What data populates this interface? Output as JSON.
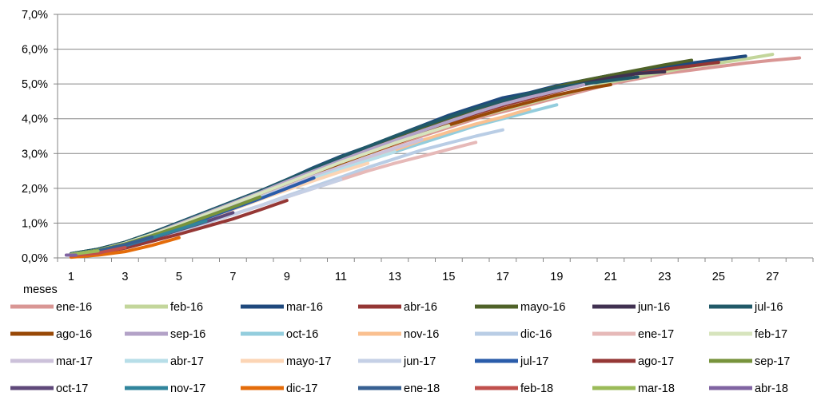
{
  "chart_data": {
    "type": "line",
    "xlabel": "meses",
    "ylabel": "",
    "xlim": [
      1,
      28
    ],
    "ylim": [
      0,
      7
    ],
    "x_ticks": [
      1,
      3,
      5,
      7,
      9,
      11,
      13,
      15,
      17,
      19,
      21,
      23,
      25,
      27
    ],
    "y_ticks": [
      "0,0%",
      "1,0%",
      "2,0%",
      "3,0%",
      "4,0%",
      "5,0%",
      "6,0%",
      "7,0%"
    ],
    "y_tick_values": [
      0,
      1,
      2,
      3,
      4,
      5,
      6,
      7
    ],
    "grid": "horizontal",
    "legend_position": "bottom",
    "series": [
      {
        "name": "ene-16",
        "color": "#d99694",
        "x": [
          1,
          2,
          3,
          4,
          5,
          6,
          7,
          8,
          9,
          10,
          11,
          12,
          13,
          14,
          15,
          16,
          17,
          18,
          19,
          20,
          21,
          22,
          23,
          24,
          25,
          26,
          27,
          28
        ],
        "values": [
          0.1,
          0.2,
          0.4,
          0.65,
          0.95,
          1.25,
          1.55,
          1.85,
          2.15,
          2.45,
          2.75,
          3.0,
          3.25,
          3.5,
          3.75,
          4.0,
          4.2,
          4.4,
          4.6,
          4.8,
          5.0,
          5.15,
          5.3,
          5.4,
          5.5,
          5.6,
          5.68,
          5.75
        ]
      },
      {
        "name": "feb-16",
        "color": "#c3d69b",
        "x": [
          1,
          2,
          3,
          4,
          5,
          6,
          7,
          8,
          9,
          10,
          11,
          12,
          13,
          14,
          15,
          16,
          17,
          18,
          19,
          20,
          21,
          22,
          23,
          24,
          25,
          26,
          27
        ],
        "values": [
          0.1,
          0.22,
          0.42,
          0.68,
          0.98,
          1.28,
          1.58,
          1.88,
          2.2,
          2.5,
          2.8,
          3.05,
          3.3,
          3.55,
          3.8,
          4.05,
          4.25,
          4.45,
          4.65,
          4.85,
          5.05,
          5.2,
          5.35,
          5.5,
          5.6,
          5.72,
          5.85
        ]
      },
      {
        "name": "mar-16",
        "color": "#1f497d",
        "x": [
          1,
          2,
          3,
          4,
          5,
          6,
          7,
          8,
          9,
          10,
          11,
          12,
          13,
          14,
          15,
          16,
          17,
          18,
          19,
          20,
          21,
          22,
          23,
          24,
          25,
          26
        ],
        "values": [
          0.12,
          0.25,
          0.45,
          0.72,
          1.02,
          1.32,
          1.62,
          1.92,
          2.25,
          2.6,
          2.92,
          3.2,
          3.5,
          3.8,
          4.1,
          4.35,
          4.6,
          4.75,
          4.95,
          5.1,
          5.25,
          5.38,
          5.5,
          5.6,
          5.7,
          5.8
        ]
      },
      {
        "name": "abr-16",
        "color": "#943634",
        "x": [
          1,
          2,
          3,
          4,
          5,
          6,
          7,
          8,
          9,
          10,
          11,
          12,
          13,
          14,
          15,
          16,
          17,
          18,
          19,
          20,
          21,
          22,
          23,
          24,
          25
        ],
        "values": [
          0.1,
          0.2,
          0.4,
          0.65,
          0.95,
          1.25,
          1.55,
          1.85,
          2.15,
          2.45,
          2.78,
          3.05,
          3.35,
          3.62,
          3.9,
          4.15,
          4.38,
          4.58,
          4.78,
          4.98,
          5.15,
          5.3,
          5.42,
          5.52,
          5.62
        ]
      },
      {
        "name": "mayo-16",
        "color": "#4f6228",
        "x": [
          1,
          2,
          3,
          4,
          5,
          6,
          7,
          8,
          9,
          10,
          11,
          12,
          13,
          14,
          15,
          16,
          17,
          18,
          19,
          20,
          21,
          22,
          23,
          24
        ],
        "values": [
          0.12,
          0.25,
          0.45,
          0.72,
          1.0,
          1.3,
          1.6,
          1.9,
          2.22,
          2.55,
          2.85,
          3.15,
          3.45,
          3.75,
          4.0,
          4.28,
          4.5,
          4.72,
          4.92,
          5.1,
          5.25,
          5.4,
          5.55,
          5.68
        ]
      },
      {
        "name": "jun-16",
        "color": "#403151",
        "x": [
          1,
          2,
          3,
          4,
          5,
          6,
          7,
          8,
          9,
          10,
          11,
          12,
          13,
          14,
          15,
          16,
          17,
          18,
          19,
          20,
          21,
          22,
          23
        ],
        "values": [
          0.1,
          0.22,
          0.42,
          0.68,
          0.98,
          1.28,
          1.58,
          1.88,
          2.2,
          2.5,
          2.8,
          3.1,
          3.38,
          3.65,
          3.92,
          4.18,
          4.42,
          4.65,
          4.85,
          5.02,
          5.18,
          5.3,
          5.35
        ]
      },
      {
        "name": "jul-16",
        "color": "#215968",
        "x": [
          1,
          2,
          3,
          4,
          5,
          6,
          7,
          8,
          9,
          10,
          11,
          12,
          13,
          14,
          15,
          16,
          17,
          18,
          19,
          20,
          21,
          22
        ],
        "values": [
          0.12,
          0.25,
          0.45,
          0.72,
          1.02,
          1.32,
          1.62,
          1.92,
          2.25,
          2.58,
          2.9,
          3.2,
          3.5,
          3.78,
          4.05,
          4.3,
          4.52,
          4.72,
          4.9,
          5.0,
          5.1,
          5.2
        ]
      },
      {
        "name": "ago-16",
        "color": "#984807",
        "x": [
          1,
          2,
          3,
          4,
          5,
          6,
          7,
          8,
          9,
          10,
          11,
          12,
          13,
          14,
          15,
          16,
          17,
          18,
          19,
          20,
          21
        ],
        "values": [
          0.08,
          0.18,
          0.38,
          0.62,
          0.92,
          1.22,
          1.52,
          1.82,
          2.12,
          2.42,
          2.72,
          3.0,
          3.28,
          3.55,
          3.82,
          4.05,
          4.28,
          4.48,
          4.68,
          4.85,
          4.98
        ]
      },
      {
        "name": "sep-16",
        "color": "#b3a2c7",
        "x": [
          1,
          2,
          3,
          4,
          5,
          6,
          7,
          8,
          9,
          10,
          11,
          12,
          13,
          14,
          15,
          16,
          17,
          18,
          19,
          20
        ],
        "values": [
          0.1,
          0.22,
          0.42,
          0.68,
          0.98,
          1.28,
          1.58,
          1.88,
          2.2,
          2.5,
          2.8,
          3.1,
          3.38,
          3.65,
          3.92,
          4.18,
          4.42,
          4.62,
          4.8,
          4.98
        ]
      },
      {
        "name": "oct-16",
        "color": "#93cddd",
        "x": [
          1,
          2,
          3,
          4,
          5,
          6,
          7,
          8,
          9,
          10,
          11,
          12,
          13,
          14,
          15,
          16,
          17,
          18,
          19
        ],
        "values": [
          0.08,
          0.18,
          0.35,
          0.58,
          0.85,
          1.12,
          1.4,
          1.68,
          1.98,
          2.25,
          2.55,
          2.8,
          3.05,
          3.3,
          3.55,
          3.8,
          4.0,
          4.2,
          4.4
        ]
      },
      {
        "name": "nov-16",
        "color": "#fac090",
        "x": [
          1,
          2,
          3,
          4,
          5,
          6,
          7,
          8,
          9,
          10,
          11,
          12,
          13,
          14,
          15,
          16,
          17,
          18
        ],
        "values": [
          0.08,
          0.18,
          0.35,
          0.58,
          0.85,
          1.12,
          1.4,
          1.68,
          1.98,
          2.28,
          2.58,
          2.85,
          3.1,
          3.38,
          3.62,
          3.85,
          4.05,
          4.28
        ]
      },
      {
        "name": "dic-16",
        "color": "#b9cde5",
        "x": [
          1,
          2,
          3,
          4,
          5,
          6,
          7,
          8,
          9,
          10,
          11,
          12,
          13,
          14,
          15,
          16,
          17
        ],
        "values": [
          0.06,
          0.14,
          0.3,
          0.5,
          0.75,
          1.0,
          1.25,
          1.5,
          1.78,
          2.05,
          2.32,
          2.6,
          2.85,
          3.1,
          3.3,
          3.5,
          3.68
        ]
      },
      {
        "name": "ene-17",
        "color": "#e6b9b8",
        "x": [
          1,
          2,
          3,
          4,
          5,
          6,
          7,
          8,
          9,
          10,
          11,
          12,
          13,
          14,
          15,
          16
        ],
        "values": [
          0.06,
          0.14,
          0.3,
          0.5,
          0.75,
          1.0,
          1.25,
          1.5,
          1.75,
          2.0,
          2.25,
          2.5,
          2.72,
          2.92,
          3.12,
          3.32
        ]
      },
      {
        "name": "feb-17",
        "color": "#d7e4bd",
        "x": [
          1,
          2,
          3,
          4,
          5,
          6,
          7,
          8,
          9,
          10,
          11,
          12,
          13,
          14,
          15
        ],
        "values": [
          0.1,
          0.22,
          0.42,
          0.68,
          0.95,
          1.25,
          1.55,
          1.85,
          2.15,
          2.45,
          2.75,
          3.02,
          3.3,
          3.55,
          3.8
        ]
      },
      {
        "name": "mar-17",
        "color": "#ccc1da",
        "x": [
          1,
          2,
          3,
          4,
          5,
          6,
          7,
          8,
          9,
          10,
          11,
          12,
          13,
          14
        ],
        "values": [
          0.08,
          0.18,
          0.38,
          0.62,
          0.9,
          1.18,
          1.48,
          1.75,
          2.05,
          2.35,
          2.62,
          2.9,
          3.15,
          3.4
        ]
      },
      {
        "name": "abr-17",
        "color": "#b7dee8",
        "x": [
          1,
          2,
          3,
          4,
          5,
          6,
          7,
          8,
          9,
          10,
          11,
          12,
          13
        ],
        "values": [
          0.08,
          0.18,
          0.36,
          0.6,
          0.88,
          1.15,
          1.42,
          1.72,
          2.0,
          2.28,
          2.55,
          2.8,
          3.05
        ]
      },
      {
        "name": "mayo-17",
        "color": "#fcd5b5",
        "x": [
          1,
          2,
          3,
          4,
          5,
          6,
          7,
          8,
          9,
          10,
          11,
          12
        ],
        "values": [
          0.08,
          0.18,
          0.36,
          0.58,
          0.85,
          1.12,
          1.4,
          1.68,
          1.95,
          2.22,
          2.48,
          2.72
        ]
      },
      {
        "name": "jun-17",
        "color": "#c5d0e6",
        "x": [
          1,
          2,
          3,
          4,
          5,
          6,
          7,
          8,
          9,
          10,
          11
        ],
        "values": [
          0.06,
          0.14,
          0.3,
          0.5,
          0.75,
          1.0,
          1.25,
          1.5,
          1.75,
          2.0,
          2.25
        ]
      },
      {
        "name": "jul-17",
        "color": "#2a5caa",
        "x": [
          1,
          2,
          3,
          4,
          5,
          6,
          7,
          8,
          9,
          10
        ],
        "values": [
          0.1,
          0.2,
          0.38,
          0.6,
          0.86,
          1.14,
          1.42,
          1.7,
          2.0,
          2.3
        ]
      },
      {
        "name": "ago-17",
        "color": "#953735",
        "x": [
          1,
          2,
          3,
          4,
          5,
          6,
          7,
          8,
          9
        ],
        "values": [
          0.06,
          0.14,
          0.28,
          0.48,
          0.68,
          0.9,
          1.12,
          1.38,
          1.65
        ]
      },
      {
        "name": "sep-17",
        "color": "#77933c",
        "x": [
          1,
          2,
          3,
          4,
          5,
          6,
          7,
          8
        ],
        "values": [
          0.1,
          0.22,
          0.4,
          0.64,
          0.9,
          1.18,
          1.46,
          1.75
        ]
      },
      {
        "name": "oct-17",
        "color": "#5f497a",
        "x": [
          1,
          2,
          3,
          4,
          5,
          6,
          7
        ],
        "values": [
          0.08,
          0.18,
          0.34,
          0.56,
          0.8,
          1.04,
          1.3
        ]
      },
      {
        "name": "nov-17",
        "color": "#31859c",
        "x": [
          1,
          2,
          3,
          4,
          5,
          6
        ],
        "values": [
          0.1,
          0.2,
          0.36,
          0.58,
          0.82,
          1.06
        ]
      },
      {
        "name": "dic-17",
        "color": "#e46c0a",
        "x": [
          1,
          2,
          3,
          4,
          5
        ],
        "values": [
          0.02,
          0.08,
          0.18,
          0.36,
          0.58
        ]
      },
      {
        "name": "ene-18",
        "color": "#376092",
        "x": [
          1,
          2,
          3,
          4
        ],
        "values": [
          0.1,
          0.2,
          0.38,
          0.6
        ]
      },
      {
        "name": "feb-18",
        "color": "#c0504d",
        "x": [
          1,
          2,
          3
        ],
        "values": [
          0.06,
          0.14,
          0.3
        ]
      },
      {
        "name": "mar-18",
        "color": "#9bbb59",
        "x": [
          1,
          2
        ],
        "values": [
          0.1,
          0.2
        ]
      },
      {
        "name": "abr-18",
        "color": "#8064a2",
        "x": [
          1
        ],
        "values": [
          0.08
        ]
      }
    ]
  }
}
